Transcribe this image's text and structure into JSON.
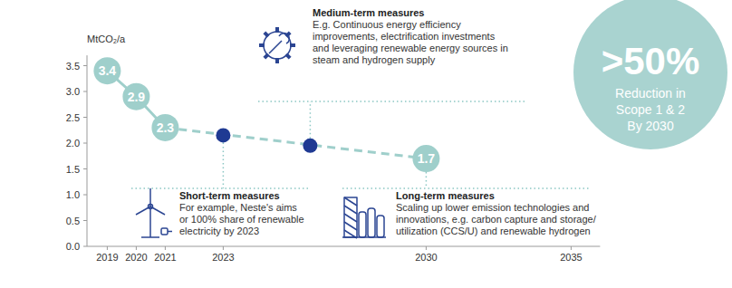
{
  "chart_data": {
    "type": "line",
    "y_label": "MtCO₂/a",
    "xlim": [
      2018.3,
      2036
    ],
    "xticks": [
      2019,
      2020,
      2021,
      2023,
      2030,
      2035
    ],
    "ylim": [
      0,
      3.7
    ],
    "yticks": [
      {
        "value": 0,
        "label": "0.0"
      },
      {
        "value": 0.5,
        "label": "0.5"
      },
      {
        "value": 1,
        "label": "1.0"
      },
      {
        "value": 1.5,
        "label": "1.5"
      },
      {
        "value": 2,
        "label": "2.0"
      },
      {
        "value": 2.5,
        "label": "2.5"
      },
      {
        "value": 3,
        "label": "3.0"
      },
      {
        "value": 3.5,
        "label": "3.5"
      }
    ],
    "grid": false,
    "series": [
      {
        "type": "line",
        "x": [
          2019,
          2020,
          2021
        ],
        "values": [
          3.4,
          2.9,
          2.3
        ],
        "color": "#9fcfcb",
        "line_style": "solid",
        "marker": "circle",
        "data_labels": true
      },
      {
        "type": "line",
        "x": [
          2021,
          2030
        ],
        "values": [
          2.3,
          1.7
        ],
        "color": "#9fcfcb",
        "line_style": "dashed",
        "marker": "none",
        "data_labels": false
      },
      {
        "type": "scatter",
        "x": [
          2023,
          2026
        ],
        "values": [
          2.15,
          1.95
        ],
        "color": "#1f3a93",
        "marker": "dot",
        "data_labels": false
      },
      {
        "type": "scatter",
        "x": [
          2030
        ],
        "values": [
          1.7
        ],
        "color": "#9fcfcb",
        "marker": "circle",
        "data_labels": true
      }
    ],
    "annotations": [
      {
        "title": "Short-term measures",
        "text": [
          "For example, Neste's aims",
          "or 100% share of renewable",
          "electricity by 2023"
        ]
      },
      {
        "title": "Medium-term measures",
        "text": [
          "E.g. Continuous energy efficiency",
          "improvements, electrification investments",
          "and leveraging renewable energy sources in",
          "steam and hydrogen supply"
        ]
      },
      {
        "title": "Long-term measures",
        "text": [
          "Scaling up lower emission technologies and",
          "innovations, e.g. carbon capture and storage/",
          "utilization (CCS/U) and renewable hydrogen"
        ]
      }
    ],
    "callout": {
      "headline": ">50%",
      "lines": [
        "Reduction in",
        "Scope 1 & 2",
        "By 2030"
      ]
    }
  }
}
